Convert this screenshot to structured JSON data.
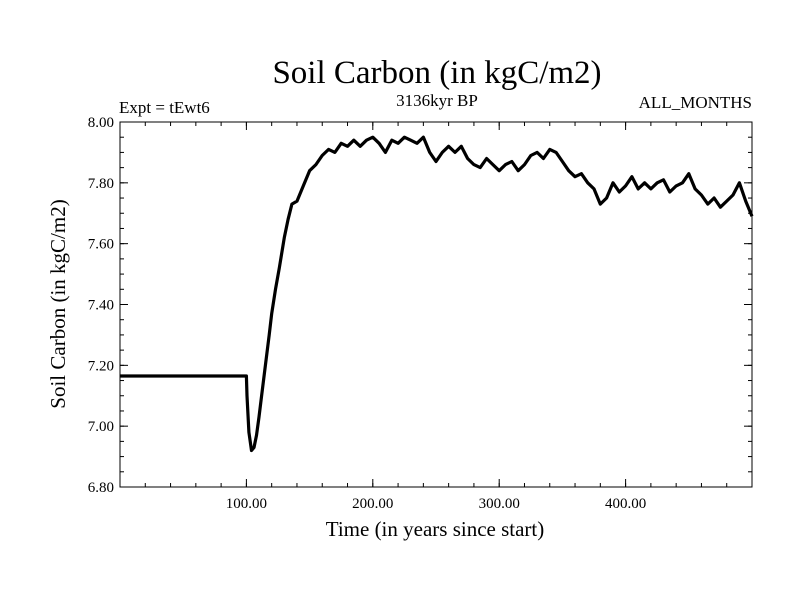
{
  "chart_data": {
    "type": "line",
    "title": "Soil Carbon (in kgC/m2)",
    "subtitle_left": "Expt = tEwt6",
    "subtitle_center": "3136kyr BP",
    "subtitle_right": "ALL_MONTHS",
    "xlabel": "Time (in years since start)",
    "ylabel": "Soil Carbon (in kgC/m2)",
    "xlim": [
      0,
      500
    ],
    "ylim": [
      6.8,
      8.0
    ],
    "xticks": [
      {
        "value": 100,
        "label": "100.00"
      },
      {
        "value": 200,
        "label": "200.00"
      },
      {
        "value": 300,
        "label": "300.00"
      },
      {
        "value": 400,
        "label": "400.00"
      }
    ],
    "yticks": [
      {
        "value": 6.8,
        "label": "6.80"
      },
      {
        "value": 7.0,
        "label": "7.00"
      },
      {
        "value": 7.2,
        "label": "7.20"
      },
      {
        "value": 7.4,
        "label": "7.40"
      },
      {
        "value": 7.6,
        "label": "7.60"
      },
      {
        "value": 7.8,
        "label": "7.80"
      },
      {
        "value": 8.0,
        "label": "8.00"
      }
    ],
    "series": [
      {
        "name": "Soil Carbon",
        "color": "#000000",
        "x": [
          0,
          100,
          100.5,
          102,
          104,
          106,
          108,
          110,
          112,
          115,
          118,
          120,
          123,
          126,
          130,
          133,
          136,
          140,
          145,
          150,
          155,
          160,
          165,
          170,
          175,
          180,
          185,
          190,
          195,
          200,
          205,
          210,
          215,
          220,
          225,
          230,
          235,
          240,
          245,
          250,
          255,
          260,
          265,
          270,
          275,
          280,
          285,
          290,
          295,
          300,
          305,
          310,
          315,
          320,
          325,
          330,
          335,
          340,
          345,
          350,
          355,
          360,
          365,
          370,
          375,
          380,
          385,
          390,
          395,
          400,
          405,
          410,
          415,
          420,
          425,
          430,
          435,
          440,
          445,
          450,
          455,
          460,
          465,
          470,
          475,
          480,
          485,
          490,
          495,
          500
        ],
        "y": [
          7.165,
          7.165,
          7.1,
          6.98,
          6.92,
          6.93,
          6.97,
          7.03,
          7.1,
          7.2,
          7.3,
          7.37,
          7.45,
          7.52,
          7.62,
          7.68,
          7.73,
          7.74,
          7.79,
          7.84,
          7.86,
          7.89,
          7.91,
          7.9,
          7.93,
          7.92,
          7.94,
          7.92,
          7.94,
          7.95,
          7.93,
          7.9,
          7.94,
          7.93,
          7.95,
          7.94,
          7.93,
          7.95,
          7.9,
          7.87,
          7.9,
          7.92,
          7.9,
          7.92,
          7.88,
          7.86,
          7.85,
          7.88,
          7.86,
          7.84,
          7.86,
          7.87,
          7.84,
          7.86,
          7.89,
          7.9,
          7.88,
          7.91,
          7.9,
          7.87,
          7.84,
          7.82,
          7.83,
          7.8,
          7.78,
          7.73,
          7.75,
          7.8,
          7.77,
          7.79,
          7.82,
          7.78,
          7.8,
          7.78,
          7.8,
          7.81,
          7.77,
          7.79,
          7.8,
          7.83,
          7.78,
          7.76,
          7.73,
          7.75,
          7.72,
          7.74,
          7.76,
          7.8,
          7.74,
          7.69
        ]
      }
    ]
  }
}
